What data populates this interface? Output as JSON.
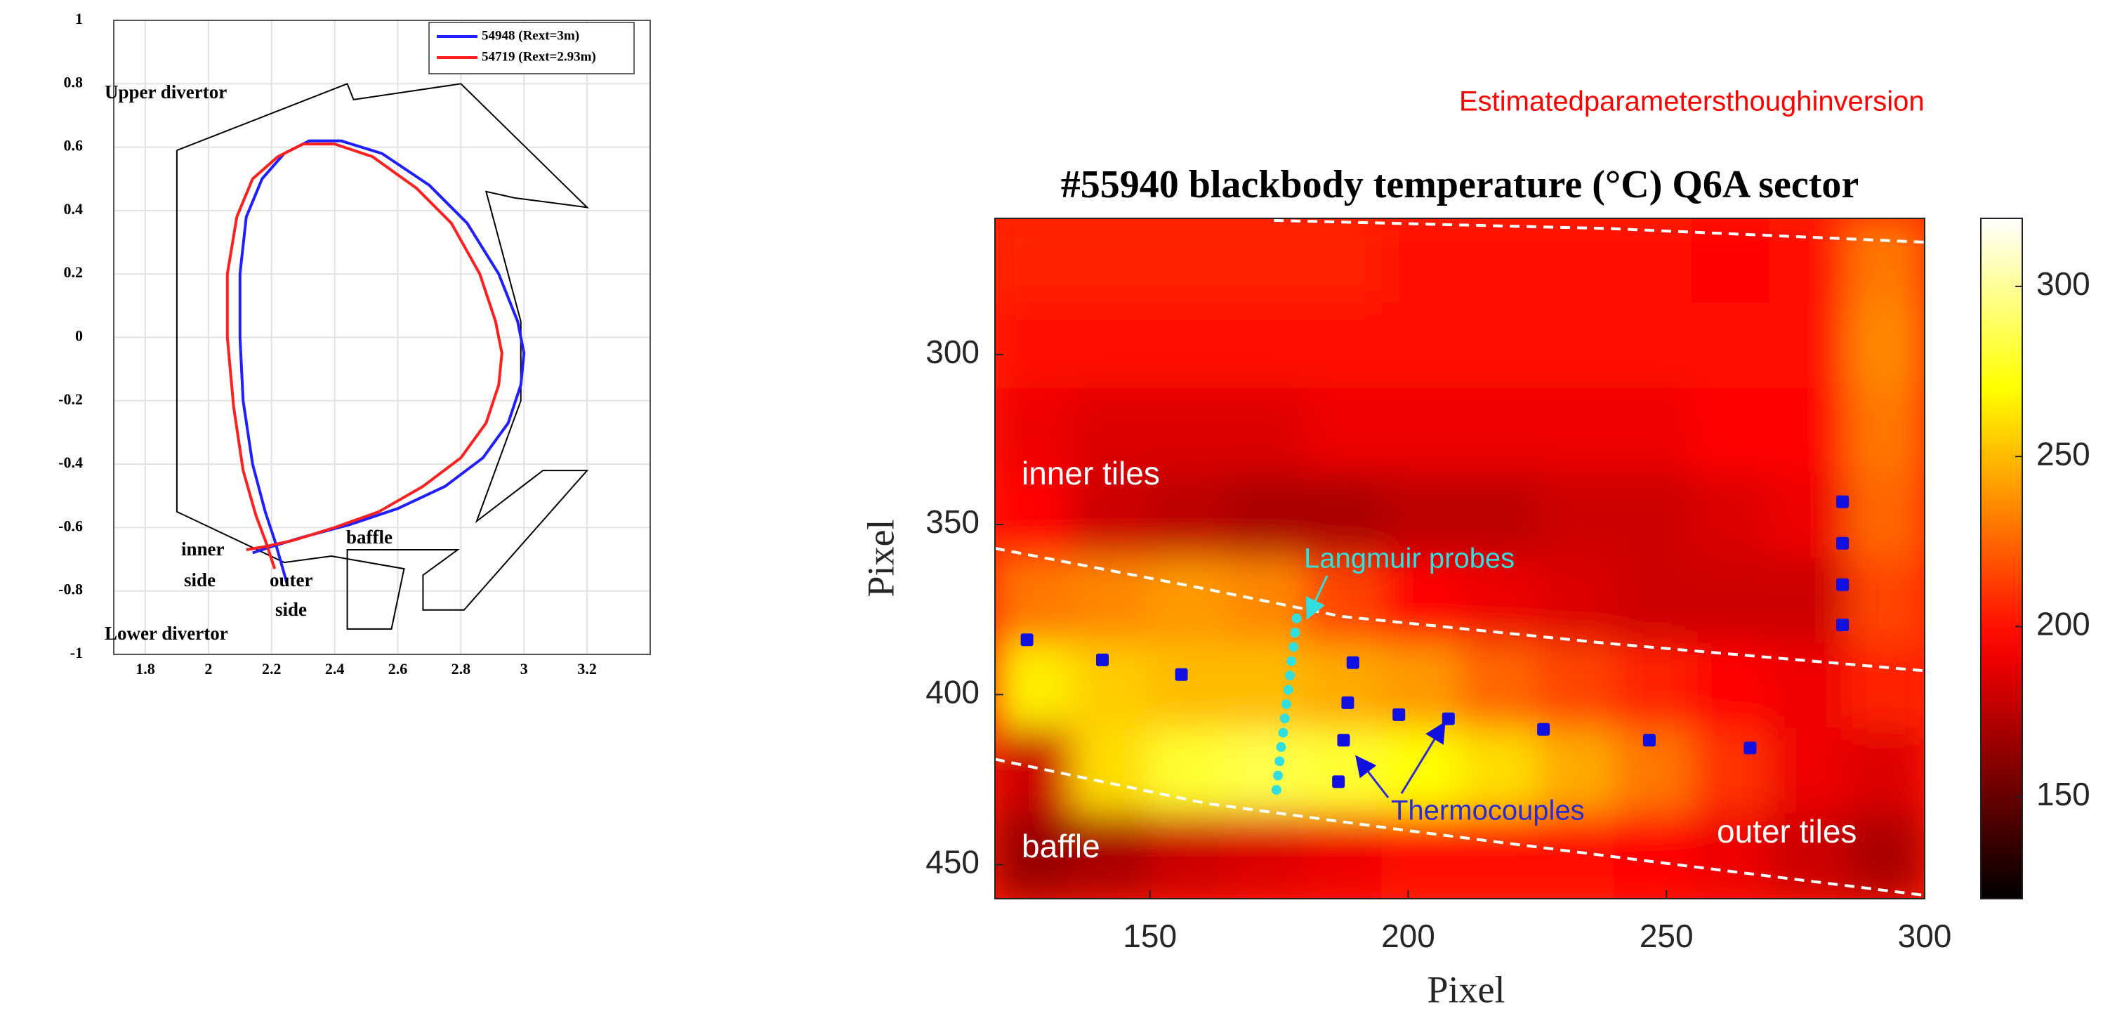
{
  "caption": "Estimatedparametersthoughinversion",
  "chart_data": [
    {
      "type": "line",
      "xlim": [
        1.7,
        3.4
      ],
      "ylim": [
        -1,
        1
      ],
      "xticks": [
        1.8,
        2,
        2.2,
        2.4,
        2.6,
        2.8,
        3,
        3.2
      ],
      "yticks": [
        -1,
        -0.8,
        -0.6,
        -0.4,
        -0.2,
        0,
        0.2,
        0.4,
        0.6,
        0.8,
        1
      ],
      "grid": true,
      "series": [
        {
          "name": "54948 (Rext=3m)",
          "color": "#1f1fff",
          "x": [
            2.25,
            2.21,
            2.18,
            2.14,
            2.11,
            2.1,
            2.1,
            2.12,
            2.17,
            2.24,
            2.32,
            2.42,
            2.55,
            2.7,
            2.82,
            2.92,
            2.98,
            3.0,
            2.99,
            2.95,
            2.87,
            2.75,
            2.6,
            2.45,
            2.3,
            2.2,
            2.14
          ],
          "y": [
            -0.78,
            -0.64,
            -0.55,
            -0.4,
            -0.2,
            0.0,
            0.2,
            0.38,
            0.5,
            0.58,
            0.62,
            0.62,
            0.58,
            0.48,
            0.36,
            0.2,
            0.05,
            -0.05,
            -0.15,
            -0.27,
            -0.38,
            -0.47,
            -0.54,
            -0.59,
            -0.63,
            -0.66,
            -0.68
          ]
        },
        {
          "name": "54719 (Rext=2.93m)",
          "color": "#ff1f1f",
          "x": [
            2.21,
            2.18,
            2.15,
            2.11,
            2.08,
            2.06,
            2.06,
            2.09,
            2.14,
            2.22,
            2.3,
            2.4,
            2.52,
            2.66,
            2.77,
            2.86,
            2.91,
            2.93,
            2.92,
            2.88,
            2.8,
            2.68,
            2.54,
            2.4,
            2.27,
            2.18,
            2.12
          ],
          "y": [
            -0.73,
            -0.64,
            -0.56,
            -0.42,
            -0.22,
            0.0,
            0.2,
            0.38,
            0.5,
            0.57,
            0.61,
            0.61,
            0.57,
            0.47,
            0.36,
            0.2,
            0.05,
            -0.05,
            -0.15,
            -0.27,
            -0.38,
            -0.47,
            -0.55,
            -0.6,
            -0.64,
            -0.66,
            -0.67
          ]
        }
      ],
      "wall": {
        "color": "#000000",
        "x": [
          1.9,
          2.44,
          2.46,
          2.8,
          3.2,
          2.97,
          2.88,
          2.99,
          2.99,
          2.85,
          3.06,
          3.2,
          2.81,
          2.68,
          2.68,
          2.79,
          2.44,
          2.44,
          2.58,
          2.62,
          2.39,
          2.24,
          1.9,
          1.9
        ],
        "y": [
          0.59,
          0.8,
          0.75,
          0.8,
          0.41,
          0.44,
          0.46,
          0.05,
          -0.2,
          -0.58,
          -0.42,
          -0.42,
          -0.86,
          -0.86,
          -0.75,
          -0.67,
          -0.67,
          -0.92,
          -0.92,
          -0.73,
          -0.69,
          -0.71,
          -0.55,
          0.59
        ]
      },
      "annotations": [
        "Upper divertor",
        "inner",
        "side",
        "outer",
        "side",
        "baffle",
        "Lower divertor"
      ]
    },
    {
      "type": "heatmap",
      "title": "#55940 blackbody temperature (°C) Q6A sector",
      "xlabel": "Pixel",
      "ylabel": "Pixel",
      "xlim": [
        120,
        300
      ],
      "ylim": [
        260,
        460
      ],
      "y_inverted": true,
      "xticks": [
        150,
        200,
        250,
        300
      ],
      "yticks": [
        300,
        350,
        400,
        450
      ],
      "x": [
        127.5,
        142.5,
        157.5,
        172.5,
        187.5,
        202.5,
        217.5,
        232.5,
        247.5,
        262.5,
        277.5,
        292.5
      ],
      "y": [
        272.5,
        297.5,
        322.5,
        347.5,
        372.5,
        397.5,
        422.5,
        447.5
      ],
      "z": [
        [
          205,
          205,
          205,
          205,
          205,
          200,
          200,
          200,
          200,
          195,
          200,
          230
        ],
        [
          200,
          200,
          200,
          200,
          200,
          200,
          200,
          200,
          200,
          200,
          200,
          235
        ],
        [
          190,
          185,
          185,
          185,
          190,
          190,
          190,
          190,
          190,
          195,
          195,
          230
        ],
        [
          195,
          180,
          175,
          170,
          170,
          175,
          175,
          180,
          180,
          185,
          190,
          225
        ],
        [
          230,
          235,
          240,
          235,
          215,
          195,
          190,
          185,
          180,
          180,
          180,
          215
        ],
        [
          265,
          255,
          250,
          250,
          245,
          240,
          225,
          215,
          205,
          195,
          190,
          205
        ],
        [
          180,
          260,
          280,
          285,
          280,
          270,
          260,
          245,
          230,
          210,
          190,
          185
        ],
        [
          165,
          170,
          180,
          185,
          190,
          200,
          200,
          200,
          195,
          190,
          180,
          170
        ]
      ],
      "colormap": "hot",
      "clim": [
        120,
        320
      ],
      "cticks": [
        150,
        200,
        250,
        300
      ],
      "boundaries": [
        {
          "color": "#ffffff",
          "x": [
            174,
            239,
            300
          ],
          "y": [
            260.6,
            263,
            267
          ]
        },
        {
          "color": "#ffffff",
          "x": [
            120,
            161,
            187,
            239,
            300
          ],
          "y": [
            357,
            369,
            377,
            385,
            393
          ]
        },
        {
          "color": "#ffffff",
          "x": [
            120,
            161,
            200,
            252,
            300
          ],
          "y": [
            419,
            432,
            440,
            450,
            459
          ]
        }
      ],
      "thermocouples": {
        "name": "Thermocouples",
        "color": "#1010e0",
        "x": [
          126.2,
          140.8,
          156.1,
          189.3,
          188.3,
          198.2,
          207.8,
          226.2,
          246.7,
          266.2,
          187.5,
          186.5,
          284.1,
          284.1,
          284.1,
          284.1
        ],
        "y": [
          383.9,
          389.8,
          394.1,
          390.6,
          402.4,
          405.9,
          407.1,
          410.2,
          413.4,
          415.7,
          413.4,
          425.6,
          343.3,
          355.5,
          367.7,
          379.5
        ]
      },
      "probes": {
        "name": "Langmuir probes",
        "color": "#33dede",
        "x": [
          178.4,
          178.1,
          177.8,
          177.4,
          177.1,
          176.8,
          176.4,
          176.1,
          175.8,
          175.4,
          175.1,
          174.8,
          174.5
        ],
        "y": [
          377.6,
          381.8,
          386.0,
          390.2,
          394.4,
          398.6,
          402.8,
          407.0,
          411.2,
          415.4,
          419.6,
          423.8,
          428.0
        ]
      },
      "annotations": [
        "inner tiles",
        "baffle",
        "outer tiles"
      ]
    }
  ]
}
